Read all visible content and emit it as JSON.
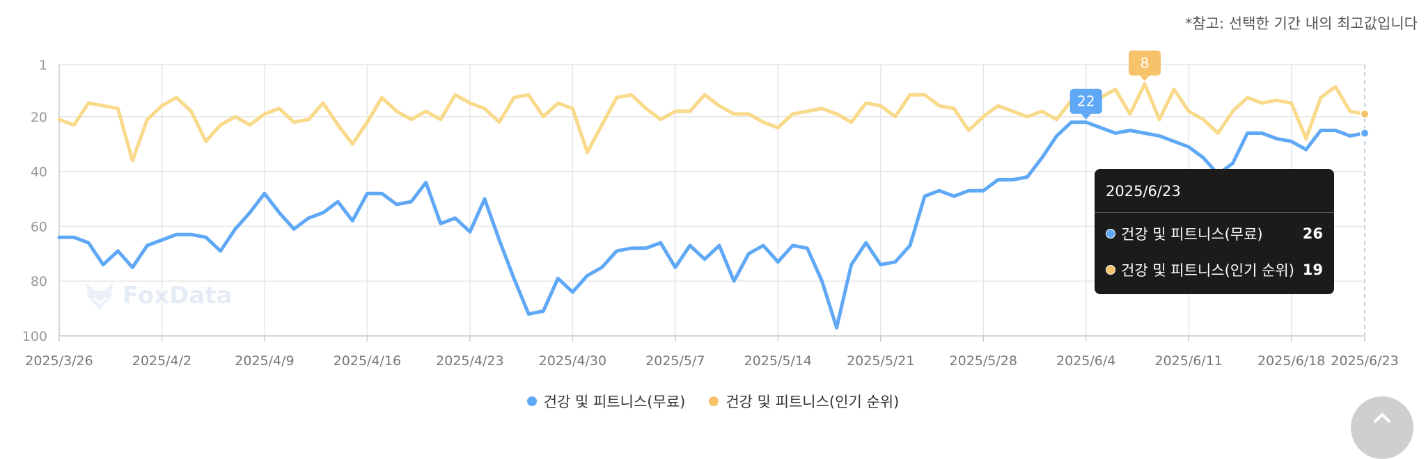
{
  "note": "*참고: 선택한 기간 내의 최고값입니다",
  "watermark": "FoxData",
  "colors": {
    "blue": "#5fa8f5",
    "yellow": "#f9d98a",
    "yellow_marker": "#f6c36b",
    "grid": "#e6e6e6"
  },
  "tooltip": {
    "date": "2025/6/23",
    "rows": [
      {
        "label": "건강 및 피트니스(무료)",
        "value": "26",
        "color": "#5fa8f5"
      },
      {
        "label": "건강 및 피트니스(인기 순위)",
        "value": "19",
        "color": "#f6c36b"
      }
    ]
  },
  "chart_data": {
    "type": "line",
    "y_reversed": true,
    "ylim": [
      1,
      100
    ],
    "yticks": [
      "1",
      "20",
      "40",
      "60",
      "80",
      "100"
    ],
    "xticks": [
      "2025/3/26",
      "2025/4/2",
      "2025/4/9",
      "2025/4/16",
      "2025/4/23",
      "2025/4/30",
      "2025/5/7",
      "2025/5/14",
      "2025/5/21",
      "2025/5/28",
      "2025/6/4",
      "2025/6/11",
      "2025/6/18",
      "2025/6/23"
    ],
    "x_start": "2025/3/26",
    "x_end": "2025/6/23",
    "grid": true,
    "legend_position": "bottom",
    "series": [
      {
        "name": "건강 및 피트니스(무료)",
        "color": "#5fa8f5",
        "values": [
          64,
          64,
          66,
          74,
          69,
          75,
          67,
          65,
          63,
          63,
          64,
          69,
          61,
          55,
          48,
          55,
          61,
          57,
          55,
          51,
          58,
          48,
          48,
          52,
          51,
          44,
          59,
          57,
          62,
          50,
          65,
          79,
          92,
          91,
          79,
          84,
          78,
          75,
          69,
          68,
          68,
          66,
          75,
          67,
          72,
          67,
          80,
          70,
          67,
          73,
          67,
          68,
          80,
          97,
          74,
          66,
          74,
          73,
          67,
          49,
          47,
          49,
          47,
          47,
          43,
          43,
          42,
          35,
          27,
          22,
          22,
          24,
          26,
          25,
          26,
          27,
          29,
          31,
          35,
          41,
          37,
          26,
          26,
          28,
          29,
          32,
          25,
          25,
          27,
          26
        ],
        "peak": {
          "label": "22",
          "index": 70
        }
      },
      {
        "name": "건강 및 피트니스(인기 순위)",
        "color": "#f9d98a",
        "values": [
          21,
          23,
          15,
          16,
          17,
          36,
          21,
          16,
          13,
          18,
          29,
          23,
          20,
          23,
          19,
          17,
          22,
          21,
          15,
          23,
          30,
          22,
          13,
          18,
          21,
          18,
          21,
          12,
          15,
          17,
          22,
          13,
          12,
          20,
          15,
          17,
          33,
          23,
          13,
          12,
          17,
          21,
          18,
          18,
          12,
          16,
          19,
          19,
          22,
          24,
          19,
          18,
          17,
          19,
          22,
          15,
          16,
          20,
          12,
          12,
          16,
          17,
          25,
          20,
          16,
          18,
          20,
          18,
          21,
          14,
          11,
          13,
          10,
          19,
          8,
          21,
          10,
          18,
          21,
          26,
          18,
          13,
          15,
          14,
          15,
          28,
          13,
          9,
          18,
          19
        ],
        "peak": {
          "label": "8",
          "index": 74
        }
      }
    ]
  }
}
